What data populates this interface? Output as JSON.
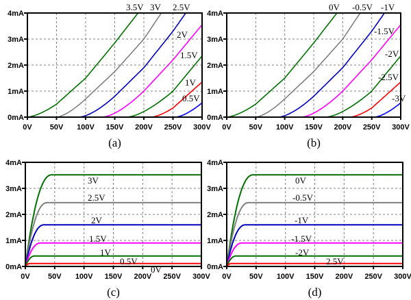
{
  "chart_data": [
    {
      "type": "line",
      "caption": "(a)",
      "xlim": [
        0,
        300
      ],
      "ylim": [
        0,
        4
      ],
      "x_ticks": [
        "0V",
        "50V",
        "100V",
        "150V",
        "200V",
        "250V",
        "300V"
      ],
      "y_ticks": [
        "0mA",
        "1mA",
        "2mA",
        "3mA",
        "4mA"
      ],
      "grid": true,
      "series": [
        {
          "name": "3.5V",
          "color": "#007000",
          "x": [
            0,
            50,
            100,
            150,
            190
          ],
          "y": [
            0,
            0.5,
            1.5,
            2.85,
            4.0
          ]
        },
        {
          "name": "3V",
          "color": "#808080",
          "x": [
            50,
            100,
            150,
            200,
            230
          ],
          "y": [
            0,
            0.7,
            1.75,
            3.0,
            4.0
          ]
        },
        {
          "name": "2.5V",
          "color": "#0000C0",
          "x": [
            90,
            150,
            200,
            250,
            272
          ],
          "y": [
            0,
            0.8,
            1.9,
            3.3,
            4.0
          ]
        },
        {
          "name": "2V",
          "color": "#FF00FF",
          "x": [
            130,
            200,
            250,
            300
          ],
          "y": [
            0,
            1.0,
            2.2,
            3.55
          ]
        },
        {
          "name": "1.5V",
          "color": "#007000",
          "x": [
            172,
            250,
            300
          ],
          "y": [
            0,
            1.0,
            2.35
          ]
        },
        {
          "name": "1V",
          "color": "#FF0000",
          "x": [
            213,
            250,
            300
          ],
          "y": [
            0,
            0.35,
            1.35
          ]
        },
        {
          "name": "0.5V",
          "color": "#0000FF",
          "x": [
            255,
            300
          ],
          "y": [
            0,
            0.55
          ]
        }
      ]
    },
    {
      "type": "line",
      "caption": "(b)",
      "xlim": [
        0,
        300
      ],
      "ylim": [
        0,
        4
      ],
      "x_ticks": [
        "0V",
        "50V",
        "100V",
        "150V",
        "200V",
        "250V",
        "300V"
      ],
      "y_ticks": [
        "0mA",
        "1mA",
        "2mA",
        "3mA",
        "4mA"
      ],
      "grid": true,
      "series": [
        {
          "name": "0V",
          "color": "#007000",
          "x": [
            0,
            50,
            100,
            150,
            190
          ],
          "y": [
            0,
            0.5,
            1.5,
            2.85,
            4.0
          ]
        },
        {
          "name": "-0.5V",
          "color": "#808080",
          "x": [
            50,
            100,
            150,
            200,
            230
          ],
          "y": [
            0,
            0.7,
            1.75,
            3.0,
            4.0
          ]
        },
        {
          "name": "-1V",
          "color": "#0000C0",
          "x": [
            90,
            150,
            200,
            250,
            272
          ],
          "y": [
            0,
            0.8,
            1.9,
            3.3,
            4.0
          ]
        },
        {
          "name": "-1.5V",
          "color": "#FF00FF",
          "x": [
            130,
            200,
            250,
            300
          ],
          "y": [
            0,
            1.0,
            2.2,
            3.55
          ]
        },
        {
          "name": "-2V",
          "color": "#007000",
          "x": [
            172,
            250,
            300
          ],
          "y": [
            0,
            1.0,
            2.35
          ]
        },
        {
          "name": "-2.5V",
          "color": "#FF0000",
          "x": [
            213,
            250,
            300
          ],
          "y": [
            0,
            0.35,
            1.35
          ]
        },
        {
          "name": "-3V",
          "color": "#0000FF",
          "x": [
            255,
            300
          ],
          "y": [
            0,
            0.55
          ]
        }
      ]
    },
    {
      "type": "line",
      "caption": "(c)",
      "xlim": [
        0,
        300
      ],
      "ylim": [
        0,
        4
      ],
      "x_ticks": [
        "0V",
        "50V",
        "100V",
        "150V",
        "200V",
        "250V",
        "300V"
      ],
      "y_ticks": [
        "0mA",
        "1mA",
        "2mA",
        "3mA",
        "4mA"
      ],
      "grid": true,
      "series": [
        {
          "name": "3V",
          "color": "#007000",
          "sat_x": 45,
          "y": 3.52
        },
        {
          "name": "2.5V",
          "color": "#808080",
          "sat_x": 37,
          "y": 2.45
        },
        {
          "name": "2V",
          "color": "#0000C0",
          "sat_x": 32,
          "y": 1.6
        },
        {
          "name": "1.5V",
          "color": "#FF00FF",
          "sat_x": 26,
          "y": 0.9
        },
        {
          "name": "1V",
          "color": "#007000",
          "sat_x": 16,
          "y": 0.4
        },
        {
          "name": "0.5V",
          "color": "#FF0000",
          "sat_x": 8,
          "y": 0.11
        },
        {
          "name": "0V",
          "color": "#0000FF",
          "sat_x": 0,
          "y": 0.0
        }
      ]
    },
    {
      "type": "line",
      "caption": "(d)",
      "xlim": [
        0,
        300
      ],
      "ylim": [
        0,
        4
      ],
      "x_ticks": [
        "0V",
        "50V",
        "100V",
        "150V",
        "200V",
        "250V",
        "300V"
      ],
      "y_ticks": [
        "0mA",
        "1mA",
        "2mA",
        "3mA",
        "4mA"
      ],
      "grid": true,
      "series": [
        {
          "name": "0V",
          "color": "#007000",
          "sat_x": 45,
          "y": 3.52
        },
        {
          "name": "-0.5V",
          "color": "#808080",
          "sat_x": 37,
          "y": 2.45
        },
        {
          "name": "-1V",
          "color": "#0000C0",
          "sat_x": 32,
          "y": 1.6
        },
        {
          "name": "-1.5V",
          "color": "#FF00FF",
          "sat_x": 26,
          "y": 0.9
        },
        {
          "name": "-2V",
          "color": "#007000",
          "sat_x": 16,
          "y": 0.4
        },
        {
          "name": "2.5V",
          "color": "#FF0000",
          "sat_x": 8,
          "y": 0.11
        },
        {
          "name": "",
          "color": "#0000FF",
          "sat_x": 0,
          "y": 0.0
        }
      ]
    }
  ]
}
